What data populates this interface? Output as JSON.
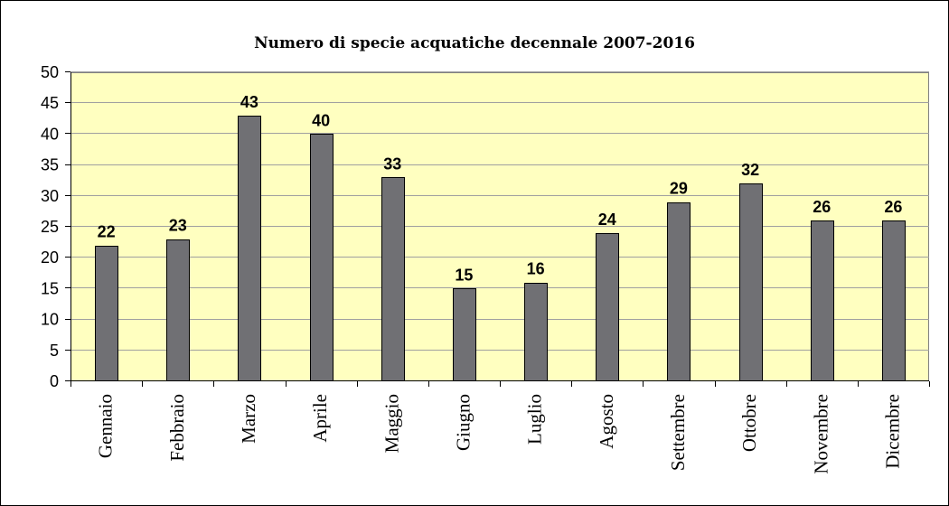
{
  "chart_data": {
    "type": "bar",
    "title": "Numero di specie acquatiche decennale 2007-2016",
    "categories": [
      "Gennaio",
      "Febbraio",
      "Marzo",
      "Aprile",
      "Maggio",
      "Giugno",
      "Luglio",
      "Agosto",
      "Settembre",
      "Ottobre",
      "Novembre",
      "Dicembre"
    ],
    "values": [
      22,
      23,
      43,
      40,
      33,
      15,
      16,
      24,
      29,
      32,
      26,
      26
    ],
    "ylim": [
      0,
      50
    ],
    "yticks": [
      0,
      5,
      10,
      15,
      20,
      25,
      30,
      35,
      40,
      45,
      50
    ],
    "data_labels": true,
    "grid": true,
    "legend": "none",
    "colors": {
      "bar": "#707074",
      "bar_edge": "#000000",
      "plot_background": "#FFFFC0",
      "plot_border": "#808080",
      "gridline": "#A0A0A0",
      "axis": "#000000"
    }
  }
}
